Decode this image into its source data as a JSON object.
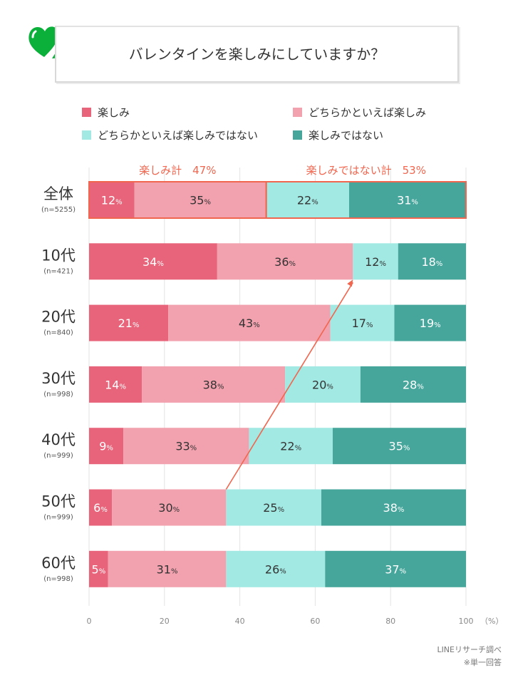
{
  "title": "バレンタインを楽しみにしていますか？",
  "logo": "line-research-heart-logo",
  "colors": {
    "enjoy": "#e8647a",
    "somewhat_enjoy": "#f2a1ae",
    "somewhat_not": "#a2e9e3",
    "not_enjoy": "#46a69b",
    "highlight": "#f1664f"
  },
  "chart_data": {
    "type": "bar",
    "orientation": "horizontal-stacked-100",
    "title": "バレンタインを楽しみにしていますか？",
    "categories": [
      "全体",
      "10代",
      "20代",
      "30代",
      "40代",
      "50代",
      "60代"
    ],
    "category_n": [
      "(n=5255)",
      "(n=421)",
      "(n=840)",
      "(n=998)",
      "(n=999)",
      "(n=999)",
      "(n=998)"
    ],
    "series": [
      {
        "name": "楽しみ",
        "values": [
          12,
          34,
          21,
          14,
          9,
          6,
          5
        ]
      },
      {
        "name": "どちらかといえば楽しみ",
        "values": [
          35,
          36,
          43,
          38,
          33,
          30,
          31
        ]
      },
      {
        "name": "どちらかといえば楽しみではない",
        "values": [
          22,
          12,
          17,
          20,
          22,
          25,
          26
        ]
      },
      {
        "name": "楽しみではない",
        "values": [
          31,
          18,
          19,
          28,
          35,
          38,
          37
        ]
      }
    ],
    "value_suffix": "%",
    "xlim": [
      0,
      100
    ],
    "xticks": [
      "0",
      "20",
      "40",
      "60",
      "80",
      "100"
    ],
    "xunit": "（%）",
    "grid": true,
    "legend_placement": "top",
    "annotations": [
      {
        "text": "楽しみ計　47%"
      },
      {
        "text": "楽しみではない計　53%"
      }
    ],
    "arrow": {
      "from": "50代 楽しみ計",
      "to": "10代 楽しみ計"
    }
  },
  "legend_rows": [
    [
      "楽しみ",
      "どちらかといえば楽しみ"
    ],
    [
      "どちらかといえば楽しみではない",
      "楽しみではない"
    ]
  ],
  "source": "LINEリサーチ調べ",
  "note": "※単一回答"
}
